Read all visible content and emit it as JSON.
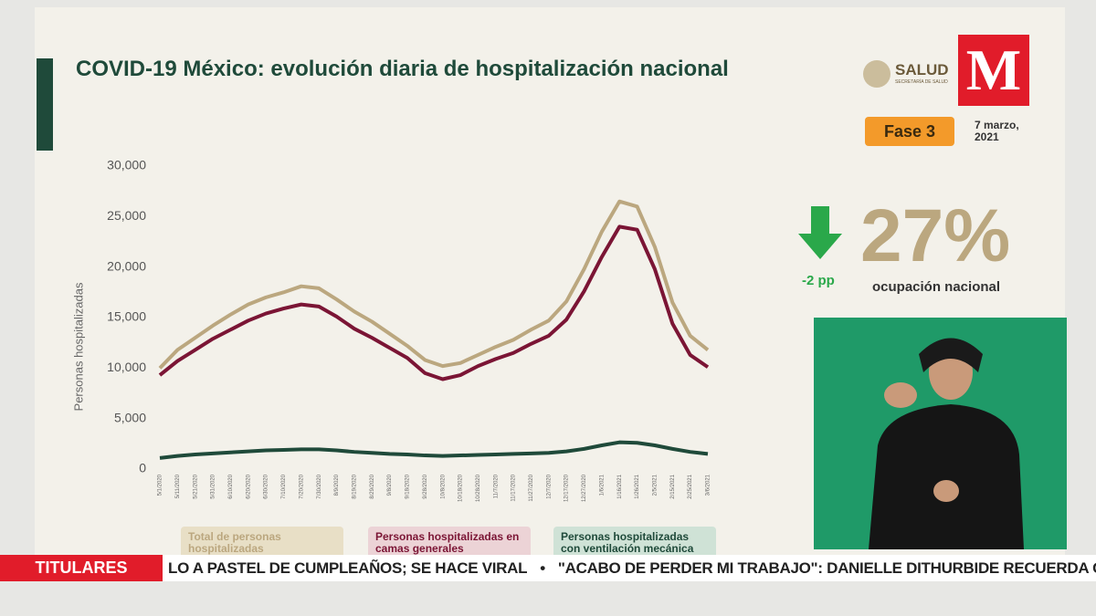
{
  "chart_data": {
    "type": "line",
    "title": "COVID-19 México: evolución diaria de hospitalización nacional",
    "ylabel": "Personas hospitalizadas",
    "categories": [
      "5/1/2020",
      "5/11/2020",
      "5/21/2020",
      "5/31/2020",
      "6/10/2020",
      "6/20/2020",
      "6/30/2020",
      "7/10/2020",
      "7/20/2020",
      "7/30/2020",
      "8/9/2020",
      "8/19/2020",
      "8/29/2020",
      "9/8/2020",
      "9/18/2020",
      "9/28/2020",
      "10/8/2020",
      "10/18/2020",
      "10/28/2020",
      "11/7/2020",
      "11/17/2020",
      "11/27/2020",
      "12/7/2020",
      "12/17/2020",
      "12/27/2020",
      "1/6/2021",
      "1/16/2021",
      "1/26/2021",
      "2/5/2021",
      "2/15/2021",
      "2/25/2021",
      "3/6/2021"
    ],
    "series": [
      {
        "name": "Total de personas hospitalizadas",
        "color": "#bba77f",
        "values": [
          10000,
          11800,
          13000,
          14200,
          15300,
          16300,
          17000,
          17500,
          18100,
          17900,
          16800,
          15600,
          14600,
          13400,
          12200,
          10800,
          10200,
          10500,
          11300,
          12100,
          12800,
          13800,
          14700,
          16600,
          19800,
          23500,
          26500,
          26000,
          22000,
          16500,
          13200,
          11800
        ]
      },
      {
        "name": "Personas hospitalizadas en camas generales",
        "color": "#7b1535",
        "values": [
          9300,
          10700,
          11800,
          12900,
          13800,
          14700,
          15400,
          15900,
          16300,
          16100,
          15100,
          13900,
          13000,
          12000,
          11000,
          9500,
          8900,
          9300,
          10200,
          10900,
          11500,
          12400,
          13200,
          14800,
          17600,
          21000,
          24000,
          23700,
          19800,
          14400,
          11300,
          10100
        ]
      },
      {
        "name": "Personas hospitalizadas con ventilación mecánica",
        "color": "#1f4a3a",
        "values": [
          1100,
          1300,
          1450,
          1550,
          1650,
          1750,
          1850,
          1900,
          1950,
          1950,
          1850,
          1700,
          1600,
          1500,
          1450,
          1350,
          1300,
          1350,
          1400,
          1450,
          1500,
          1550,
          1600,
          1750,
          2000,
          2350,
          2650,
          2600,
          2350,
          2000,
          1700,
          1500
        ]
      }
    ],
    "ylim": [
      0,
      30000
    ],
    "yticks": [
      0,
      {
        "value": 5000,
        "label": "5,000"
      },
      {
        "value": 10000,
        "label": "10,000"
      },
      {
        "value": 15000,
        "label": "15,000"
      },
      {
        "value": 20000,
        "label": "20,000"
      },
      {
        "value": 25000,
        "label": "25,000"
      },
      {
        "value": 30000,
        "label": "30,000"
      }
    ],
    "grid": false
  },
  "header": {
    "logo": "SALUD",
    "logo_sub": "SECRETARÍA DE SALUD",
    "channel": "M",
    "phase": "Fase 3",
    "date": "7 marzo, 2021"
  },
  "kpi": {
    "value": "27%",
    "change": "-2 pp",
    "label": "ocupación nacional"
  },
  "ticker": {
    "label": "TITULARES",
    "items": [
      "LO A PASTEL DE CUMPLEAÑOS; SE HACE VIRAL",
      "•",
      "\"ACABO DE PERDER MI TRABAJO\": DANIELLE DITHURBIDE RECUERDA CASO"
    ]
  }
}
